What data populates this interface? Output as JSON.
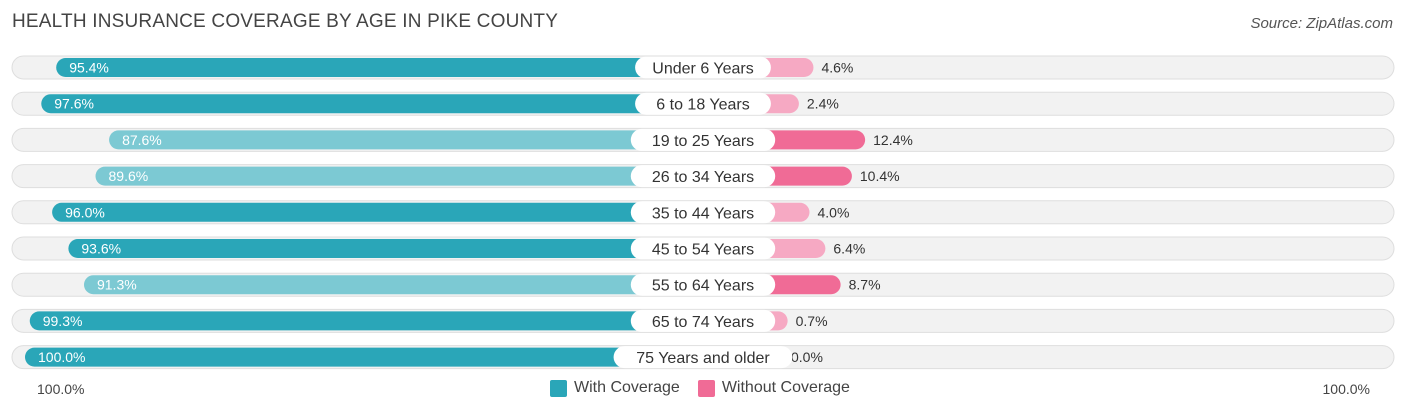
{
  "title": "HEALTH INSURANCE COVERAGE BY AGE IN PIKE COUNTY",
  "source": "Source: ZipAtlas.com",
  "colors": {
    "with_strong": "#2aa6b8",
    "with_light": "#7cc9d3",
    "without_strong": "#f06b96",
    "without_light": "#f6a9c3",
    "track": "#f2f2f2",
    "track_border": "#dedede"
  },
  "legend": {
    "with_label": "With Coverage",
    "without_label": "Without Coverage"
  },
  "axis": {
    "left_label": "100.0%",
    "right_label": "100.0%"
  },
  "chart_data": {
    "type": "bar",
    "orientation": "horizontal-diverging",
    "title": "HEALTH INSURANCE COVERAGE BY AGE IN PIKE COUNTY",
    "categories": [
      "Under 6 Years",
      "6 to 18 Years",
      "19 to 25 Years",
      "26 to 34 Years",
      "35 to 44 Years",
      "45 to 54 Years",
      "55 to 64 Years",
      "65 to 74 Years",
      "75 Years and older"
    ],
    "series": [
      {
        "name": "With Coverage",
        "values": [
          95.4,
          97.6,
          87.6,
          89.6,
          96.0,
          93.6,
          91.3,
          99.3,
          100.0
        ],
        "labels": [
          "95.4%",
          "97.6%",
          "87.6%",
          "89.6%",
          "96.0%",
          "93.6%",
          "91.3%",
          "99.3%",
          "100.0%"
        ]
      },
      {
        "name": "Without Coverage",
        "values": [
          4.6,
          2.4,
          12.4,
          10.4,
          4.0,
          6.4,
          8.7,
          0.7,
          0.0
        ],
        "labels": [
          "4.6%",
          "2.4%",
          "12.4%",
          "10.4%",
          "4.0%",
          "6.4%",
          "8.7%",
          "0.7%",
          "0.0%"
        ]
      }
    ],
    "xlim": [
      -100,
      100
    ],
    "legend": "bottom-center"
  }
}
